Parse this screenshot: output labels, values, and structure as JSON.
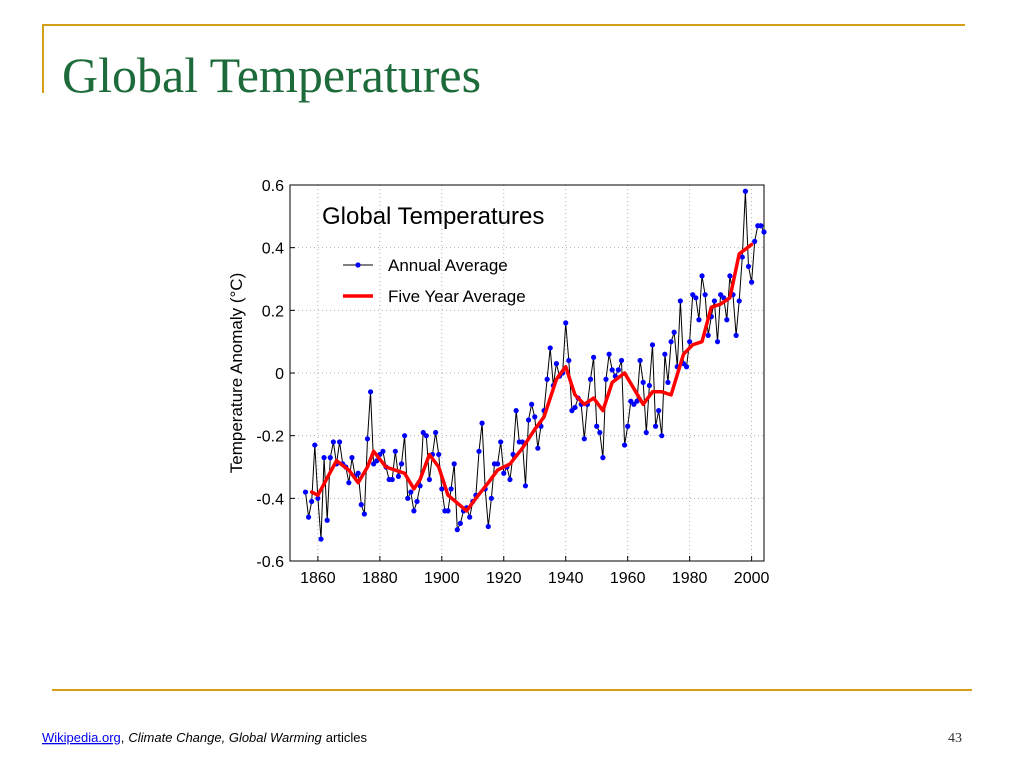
{
  "slide": {
    "title": "Global Temperatures",
    "page_number": "43",
    "footer": {
      "link": "Wikipedia.org",
      "separator": ",",
      "topics": "Climate Change, Global Warming",
      "suffix": "articles"
    }
  },
  "chart_data": {
    "type": "line",
    "title": "Global Temperatures",
    "ylabel": "Temperature Anomaly (°C)",
    "xlim": [
      1851,
      2004
    ],
    "ylim": [
      -0.6,
      0.6
    ],
    "xticks": [
      1860,
      1880,
      1900,
      1920,
      1940,
      1960,
      1980,
      2000
    ],
    "yticks": [
      -0.6,
      -0.4,
      -0.2,
      0,
      0.2,
      0.4,
      0.6
    ],
    "grid": true,
    "legend": "upper left",
    "series": [
      {
        "name": "Annual Average",
        "color": "#0000ff",
        "line_color": "#000000",
        "x": [
          1856,
          1857,
          1858,
          1859,
          1860,
          1861,
          1862,
          1863,
          1864,
          1865,
          1866,
          1867,
          1868,
          1869,
          1870,
          1871,
          1872,
          1873,
          1874,
          1875,
          1876,
          1877,
          1878,
          1879,
          1880,
          1881,
          1882,
          1883,
          1884,
          1885,
          1886,
          1887,
          1888,
          1889,
          1890,
          1891,
          1892,
          1893,
          1894,
          1895,
          1896,
          1897,
          1898,
          1899,
          1900,
          1901,
          1902,
          1903,
          1904,
          1905,
          1906,
          1907,
          1908,
          1909,
          1910,
          1911,
          1912,
          1913,
          1914,
          1915,
          1916,
          1917,
          1918,
          1919,
          1920,
          1921,
          1922,
          1923,
          1924,
          1925,
          1926,
          1927,
          1928,
          1929,
          1930,
          1931,
          1932,
          1933,
          1934,
          1935,
          1936,
          1937,
          1938,
          1939,
          1940,
          1941,
          1942,
          1943,
          1944,
          1945,
          1946,
          1947,
          1948,
          1949,
          1950,
          1951,
          1952,
          1953,
          1954,
          1955,
          1956,
          1957,
          1958,
          1959,
          1960,
          1961,
          1962,
          1963,
          1964,
          1965,
          1966,
          1967,
          1968,
          1969,
          1970,
          1971,
          1972,
          1973,
          1974,
          1975,
          1976,
          1977,
          1978,
          1979,
          1980,
          1981,
          1982,
          1983,
          1984,
          1985,
          1986,
          1987,
          1988,
          1989,
          1990,
          1991,
          1992,
          1993,
          1994,
          1995,
          1996,
          1997,
          1998,
          1999,
          2000,
          2001,
          2002,
          2003,
          2004
        ],
        "values": [
          -0.38,
          -0.46,
          -0.41,
          -0.23,
          -0.4,
          -0.53,
          -0.27,
          -0.47,
          -0.27,
          -0.22,
          -0.29,
          -0.22,
          -0.29,
          -0.3,
          -0.35,
          -0.27,
          -0.33,
          -0.32,
          -0.42,
          -0.45,
          -0.21,
          -0.06,
          -0.29,
          -0.28,
          -0.26,
          -0.25,
          -0.3,
          -0.34,
          -0.34,
          -0.25,
          -0.33,
          -0.29,
          -0.2,
          -0.4,
          -0.38,
          -0.44,
          -0.41,
          -0.36,
          -0.19,
          -0.2,
          -0.34,
          -0.26,
          -0.19,
          -0.26,
          -0.37,
          -0.44,
          -0.44,
          -0.37,
          -0.29,
          -0.5,
          -0.48,
          -0.44,
          -0.43,
          -0.46,
          -0.41,
          -0.39,
          -0.25,
          -0.16,
          -0.37,
          -0.49,
          -0.4,
          -0.29,
          -0.29,
          -0.22,
          -0.32,
          -0.3,
          -0.34,
          -0.26,
          -0.12,
          -0.22,
          -0.22,
          -0.36,
          -0.15,
          -0.1,
          -0.14,
          -0.24,
          -0.17,
          -0.12,
          -0.02,
          0.08,
          -0.04,
          0.03,
          -0.01,
          0.0,
          0.16,
          0.04,
          -0.12,
          -0.11,
          -0.08,
          -0.1,
          -0.21,
          -0.1,
          -0.02,
          0.05,
          -0.17,
          -0.19,
          -0.27,
          -0.02,
          0.06,
          0.01,
          -0.01,
          0.01,
          0.04,
          -0.23,
          -0.17,
          -0.09,
          -0.1,
          -0.09,
          0.04,
          -0.03,
          -0.19,
          -0.04,
          0.09,
          -0.17,
          -0.12,
          -0.2,
          0.06,
          -0.03,
          0.1,
          0.13,
          0.02,
          0.23,
          0.03,
          0.02,
          0.1,
          0.25,
          0.24,
          0.17,
          0.31,
          0.25,
          0.12,
          0.18,
          0.23,
          0.1,
          0.25,
          0.24,
          0.17,
          0.31,
          0.25,
          0.12,
          0.23,
          0.37,
          0.58,
          0.34,
          0.29,
          0.42,
          0.47,
          0.47,
          0.45
        ]
      },
      {
        "name": "Five Year Average",
        "color": "#ff0000",
        "x": [
          1858,
          1860,
          1866,
          1870,
          1873,
          1876,
          1878,
          1882,
          1885,
          1888,
          1891,
          1893,
          1896,
          1899,
          1902,
          1908,
          1911,
          1915,
          1918,
          1922,
          1926,
          1930,
          1933,
          1937,
          1940,
          1943,
          1946,
          1949,
          1952,
          1955,
          1959,
          1962,
          1965,
          1968,
          1971,
          1974,
          1978,
          1981,
          1984,
          1987,
          1990,
          1993,
          1996,
          2000
        ],
        "values": [
          -0.38,
          -0.39,
          -0.28,
          -0.31,
          -0.35,
          -0.3,
          -0.25,
          -0.3,
          -0.31,
          -0.32,
          -0.37,
          -0.34,
          -0.26,
          -0.3,
          -0.39,
          -0.44,
          -0.4,
          -0.35,
          -0.31,
          -0.29,
          -0.24,
          -0.18,
          -0.14,
          -0.02,
          0.02,
          -0.07,
          -0.1,
          -0.08,
          -0.12,
          -0.03,
          0.0,
          -0.05,
          -0.1,
          -0.06,
          -0.06,
          -0.07,
          0.06,
          0.09,
          0.1,
          0.21,
          0.22,
          0.24,
          0.38,
          0.41
        ]
      }
    ]
  }
}
